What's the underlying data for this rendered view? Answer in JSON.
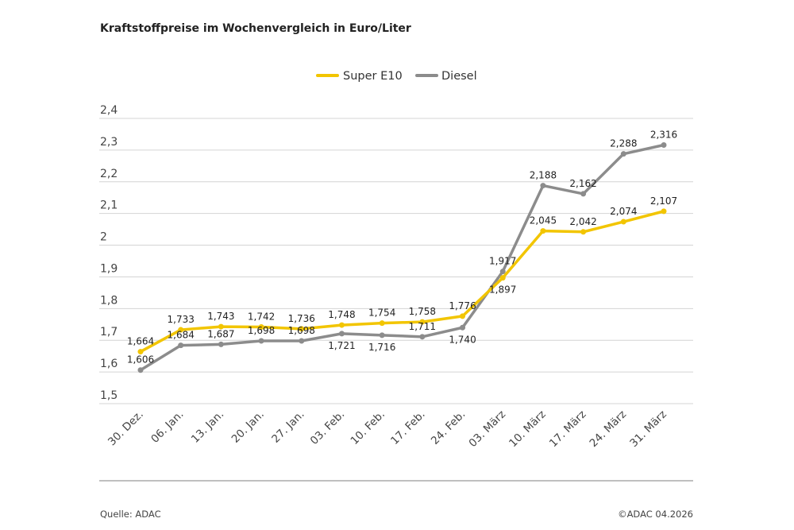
{
  "title": "Kraftstoffpreise im Wochenvergleich in Euro/Liter",
  "source": "Quelle: ADAC",
  "copyright": "©ADAC 04.2026",
  "chart_data": {
    "type": "line",
    "title": "Kraftstoffpreise im Wochenvergleich in Euro/Liter",
    "xlabel": "",
    "ylabel": "",
    "ylim": [
      1.5,
      2.4
    ],
    "yticks": [
      "1,5",
      "1,6",
      "1,7",
      "1,8",
      "1,9",
      "2",
      "2,1",
      "2,2",
      "2,3",
      "2,4"
    ],
    "grid": true,
    "legend_position": "top-center",
    "categories": [
      "30. Dez.",
      "06. Jan.",
      "13. Jan.",
      "20. Jan.",
      "27. Jan.",
      "03. Feb.",
      "10. Feb.",
      "17. Feb.",
      "24. Feb.",
      "03. März",
      "10. März",
      "17. März",
      "24. März",
      "31. März"
    ],
    "series": [
      {
        "name": "Super E10",
        "color": "#f2c500",
        "values": [
          1.664,
          1.733,
          1.743,
          1.742,
          1.736,
          1.748,
          1.754,
          1.758,
          1.776,
          1.897,
          2.045,
          2.042,
          2.074,
          2.107
        ],
        "labels": [
          "1,664",
          "1,733",
          "1,743",
          "1,742",
          "1,736",
          "1,748",
          "1,754",
          "1,758",
          "1,776",
          "1,897",
          "2,045",
          "2,042",
          "2,074",
          "2,107"
        ]
      },
      {
        "name": "Diesel",
        "color": "#8c8c8c",
        "values": [
          1.606,
          1.684,
          1.687,
          1.698,
          1.698,
          1.721,
          1.716,
          1.711,
          1.74,
          1.917,
          2.188,
          2.162,
          2.288,
          2.316
        ],
        "labels": [
          "1,606",
          "1,684",
          "1,687",
          "1,698",
          "1,698",
          "1,721",
          "1,716",
          "1,711",
          "1,740",
          "1,917",
          "2,188",
          "2,162",
          "2,288",
          "2,316"
        ]
      }
    ]
  }
}
